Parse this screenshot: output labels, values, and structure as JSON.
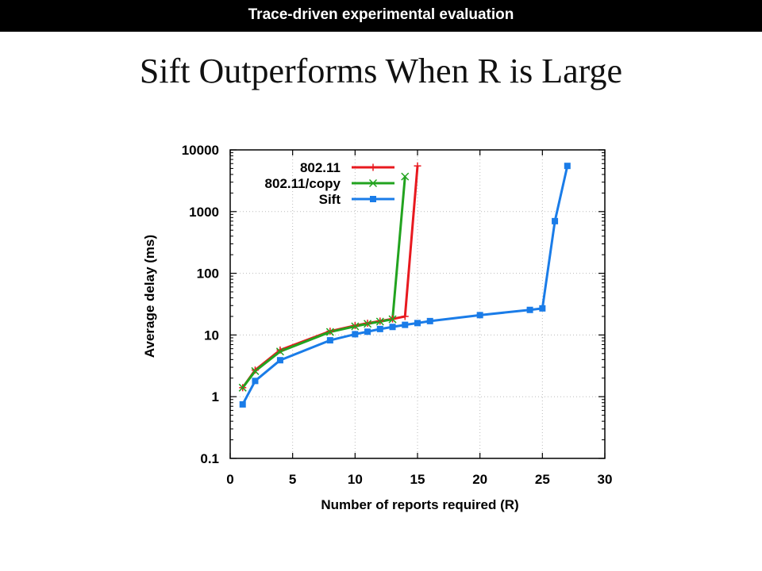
{
  "banner": {
    "text": "Trace-driven experimental evaluation"
  },
  "slide": {
    "title": "Sift Outperforms When R is Large"
  },
  "chart_data": {
    "type": "line",
    "xlabel": "Number of reports required (R)",
    "ylabel": "Average delay (ms)",
    "xlim": [
      0,
      30
    ],
    "ylim": [
      0.1,
      10000
    ],
    "yscale": "log",
    "x_ticks": [
      0,
      5,
      10,
      15,
      20,
      25,
      30
    ],
    "y_ticks": [
      0.1,
      1,
      10,
      100,
      1000,
      10000
    ],
    "x_tick_labels": [
      "0",
      "5",
      "10",
      "15",
      "20",
      "25",
      "30"
    ],
    "y_tick_labels": [
      "0.1",
      "1",
      "10",
      "100",
      "1000",
      "10000"
    ],
    "grid": true,
    "legend_position": "top-left",
    "series": [
      {
        "name": "802.11",
        "color": "#e8191f",
        "marker": "plus",
        "x": [
          1,
          2,
          4,
          8,
          10,
          11,
          12,
          13,
          14,
          15
        ],
        "y": [
          1.4,
          2.7,
          5.7,
          11.5,
          14.2,
          15.5,
          16.8,
          18.2,
          20,
          5500
        ]
      },
      {
        "name": "802.11/copy",
        "color": "#22a31f",
        "marker": "x",
        "x": [
          1,
          2,
          4,
          8,
          10,
          11,
          12,
          13,
          14
        ],
        "y": [
          1.4,
          2.6,
          5.4,
          11.2,
          13.8,
          15.2,
          16.5,
          18,
          3700
        ]
      },
      {
        "name": "Sift",
        "color": "#1a7ce8",
        "marker": "square",
        "x": [
          1,
          2,
          4,
          8,
          10,
          11,
          12,
          13,
          14,
          15,
          16,
          20,
          24,
          25,
          26,
          27
        ],
        "y": [
          0.75,
          1.8,
          3.9,
          8.2,
          10.3,
          11.3,
          12.5,
          13.5,
          14.6,
          15.6,
          16.8,
          21,
          25.5,
          27,
          700,
          5500
        ]
      }
    ]
  }
}
